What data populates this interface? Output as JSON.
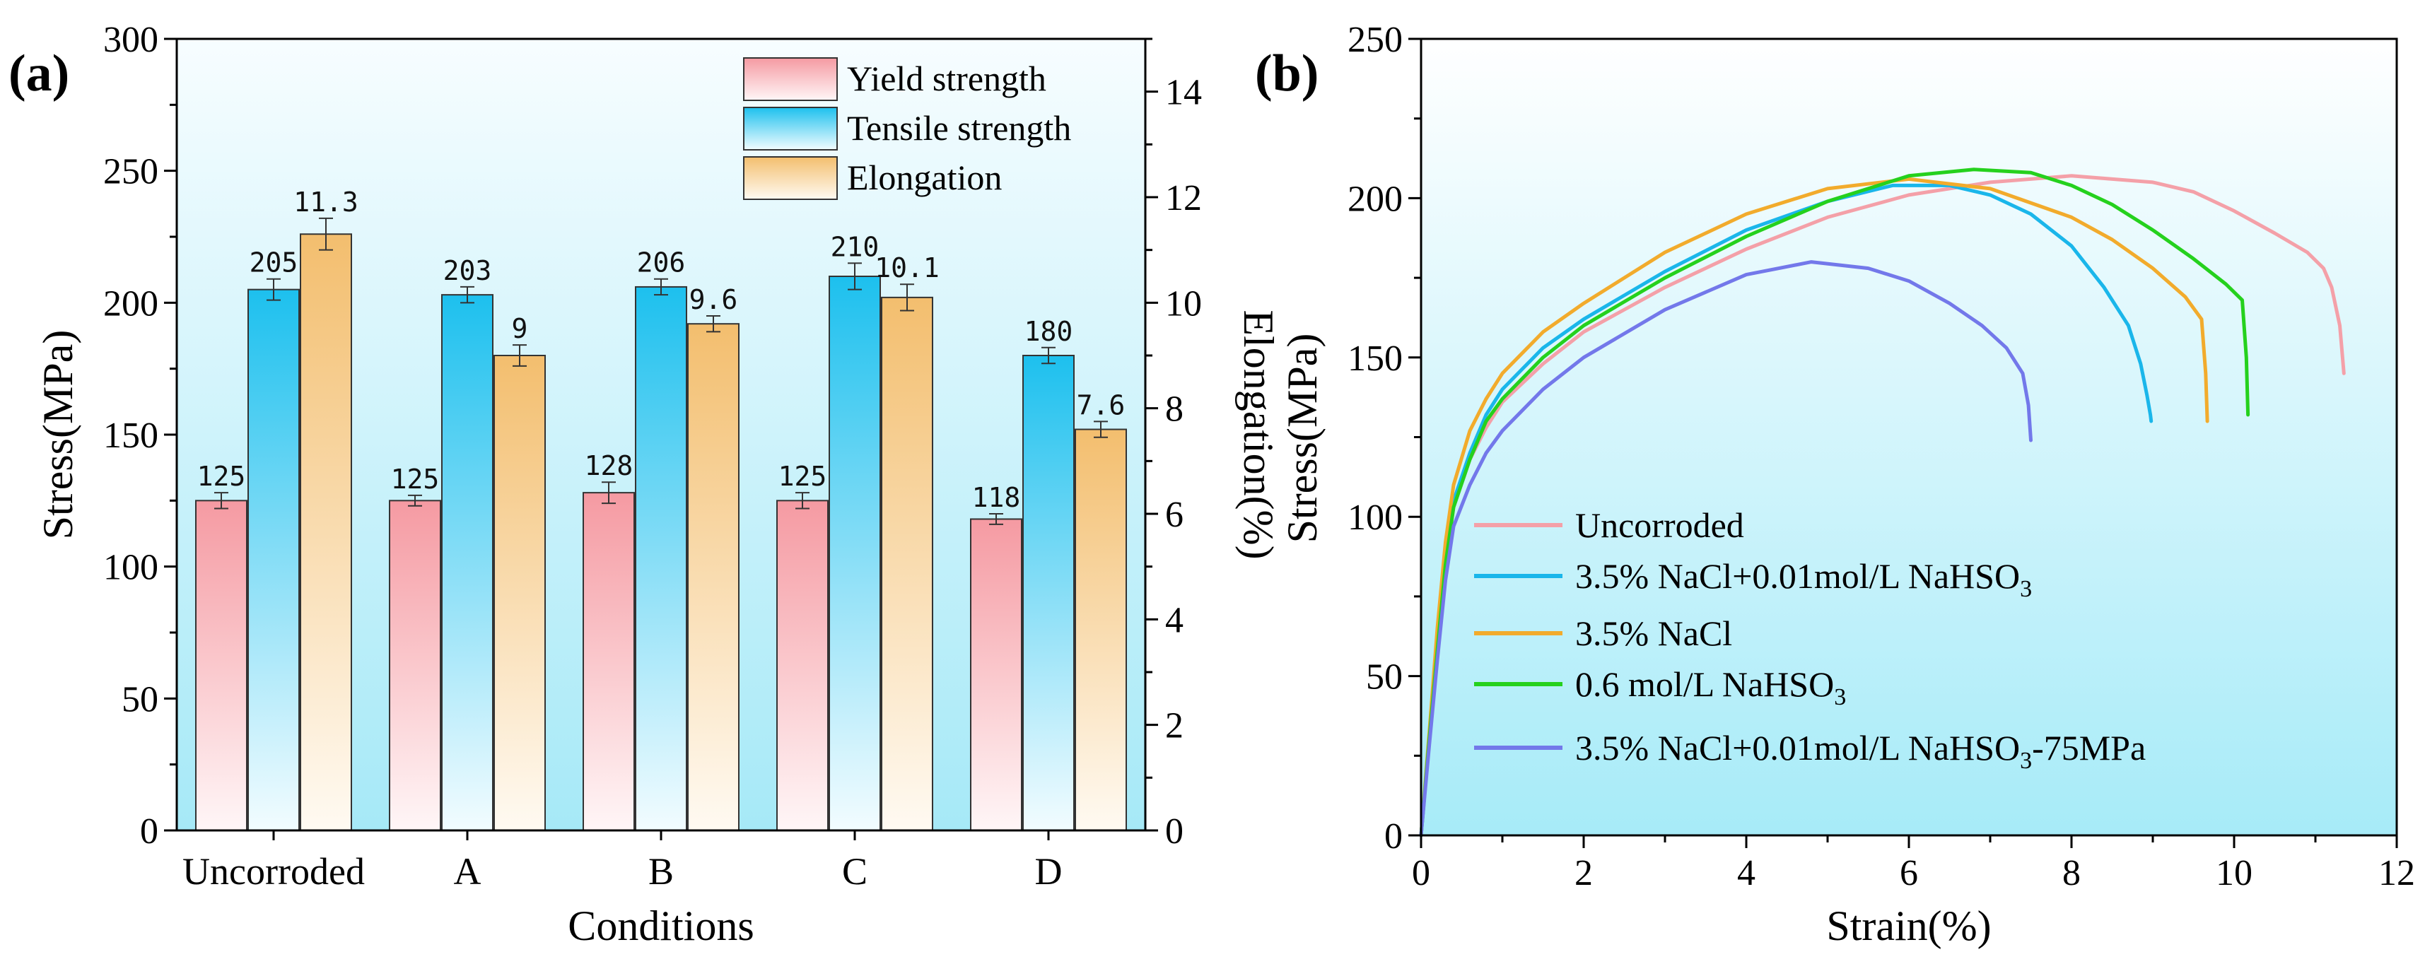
{
  "chart_data": [
    {
      "panel_label": "(a)",
      "type": "bar",
      "xlabel": "Conditions",
      "ylabel": "Stress(MPa)",
      "y2label": "Elongation(%)",
      "categories": [
        "Uncorroded",
        "A",
        "B",
        "C",
        "D"
      ],
      "ylim": [
        0,
        300
      ],
      "yticks": [
        "0",
        "50",
        "100",
        "150",
        "200",
        "250",
        "300"
      ],
      "y2lim": [
        0,
        15
      ],
      "y2ticks": [
        "0",
        "2",
        "4",
        "6",
        "8",
        "10",
        "12",
        "14"
      ],
      "legend_position": "top-right",
      "series": [
        {
          "name": "Yield strength",
          "axis": "left",
          "color": "#f5a3aa",
          "values": [
            125,
            125,
            128,
            125,
            118
          ],
          "errors": [
            3,
            2,
            4,
            3,
            2
          ],
          "labels": [
            "125",
            "125",
            "128",
            "125",
            "118"
          ]
        },
        {
          "name": "Tensile strength",
          "axis": "left",
          "color": "#27c4ee",
          "values": [
            205,
            203,
            206,
            210,
            180
          ],
          "errors": [
            4,
            3,
            3,
            5,
            3
          ],
          "labels": [
            "205",
            "203",
            "206",
            "210",
            "180"
          ]
        },
        {
          "name": "Elongation",
          "axis": "right",
          "color": "#f4c57f",
          "values": [
            11.3,
            9.0,
            9.6,
            10.1,
            7.6
          ],
          "errors": [
            0.3,
            0.2,
            0.15,
            0.25,
            0.15
          ],
          "labels": [
            "11.3",
            "9",
            "9.6",
            "10.1",
            "7.6"
          ]
        }
      ]
    },
    {
      "panel_label": "(b)",
      "type": "line",
      "xlabel": "Strain(%)",
      "ylabel": "Stress(MPa)",
      "xlim": [
        0,
        12
      ],
      "xticks": [
        "0",
        "2",
        "4",
        "6",
        "8",
        "10",
        "12"
      ],
      "ylim": [
        0,
        250
      ],
      "yticks": [
        "0",
        "50",
        "100",
        "150",
        "200",
        "250"
      ],
      "legend_position": "bottom-left",
      "series": [
        {
          "name": "Uncorroded",
          "label_main": "Uncorroded",
          "label_sub": "",
          "label_tail": "",
          "color": "#f4a0a8",
          "x": [
            0,
            0.1,
            0.2,
            0.3,
            0.4,
            0.6,
            0.8,
            1,
            1.5,
            2,
            3,
            4,
            5,
            6,
            7,
            8,
            9,
            9.5,
            10,
            10.5,
            10.9,
            11.1,
            11.2,
            11.3,
            11.35
          ],
          "y": [
            0,
            30,
            60,
            85,
            103,
            118,
            128,
            136,
            148,
            158,
            172,
            184,
            194,
            201,
            205,
            207,
            205,
            202,
            196,
            189,
            183,
            178,
            172,
            160,
            145
          ]
        },
        {
          "name": "3.5% NaCl+0.01mol/L NaHSO3",
          "label_main": "3.5% NaCl+0.01mol/L NaHSO",
          "label_sub": "3",
          "label_tail": "",
          "color": "#1ab6ea",
          "x": [
            0,
            0.1,
            0.2,
            0.3,
            0.4,
            0.6,
            0.8,
            1,
            1.5,
            2,
            3,
            4,
            5,
            5.8,
            6.5,
            7,
            7.5,
            8,
            8.4,
            8.7,
            8.85,
            8.93,
            8.97,
            8.98
          ],
          "y": [
            0,
            30,
            60,
            88,
            105,
            120,
            132,
            140,
            153,
            162,
            177,
            190,
            199,
            204,
            204,
            201,
            195,
            185,
            172,
            160,
            148,
            138,
            132,
            130
          ]
        },
        {
          "name": "3.5% NaCl",
          "label_main": "3.5% NaCl",
          "label_sub": "",
          "label_tail": "",
          "color": "#f2ab2c",
          "x": [
            0,
            0.1,
            0.2,
            0.3,
            0.4,
            0.6,
            0.8,
            1,
            1.5,
            2,
            3,
            4,
            5,
            6,
            7,
            8,
            8.5,
            9,
            9.4,
            9.6,
            9.65,
            9.67
          ],
          "y": [
            0,
            32,
            65,
            92,
            110,
            127,
            137,
            145,
            158,
            167,
            183,
            195,
            203,
            206,
            203,
            194,
            187,
            178,
            169,
            162,
            145,
            130
          ]
        },
        {
          "name": "0.6 mol/L NaHSO3",
          "label_main": "0.6 mol/L NaHSO",
          "label_sub": "3",
          "label_tail": "",
          "color": "#25d11d",
          "x": [
            0,
            0.1,
            0.2,
            0.3,
            0.4,
            0.6,
            0.8,
            1,
            1.5,
            2,
            3,
            4,
            5,
            6,
            6.8,
            7.5,
            8,
            8.5,
            9,
            9.5,
            9.9,
            10.1,
            10.15,
            10.17
          ],
          "y": [
            0,
            30,
            58,
            85,
            103,
            118,
            130,
            137,
            150,
            160,
            175,
            188,
            199,
            207,
            209,
            208,
            204,
            198,
            190,
            181,
            173,
            168,
            150,
            132
          ]
        },
        {
          "name": "3.5% NaCl+0.01mol/L NaHSO3-75MPa",
          "label_main": "3.5% NaCl+0.01mol/L NaHSO",
          "label_sub": "3",
          "label_tail": "-75MPa",
          "color": "#7378ea",
          "x": [
            0,
            0.1,
            0.2,
            0.3,
            0.4,
            0.6,
            0.8,
            1,
            1.5,
            2,
            3,
            4,
            4.8,
            5.5,
            6,
            6.5,
            6.9,
            7.2,
            7.4,
            7.47,
            7.5
          ],
          "y": [
            0,
            28,
            55,
            80,
            97,
            110,
            120,
            127,
            140,
            150,
            165,
            176,
            180,
            178,
            174,
            167,
            160,
            153,
            145,
            135,
            124
          ]
        }
      ]
    }
  ]
}
